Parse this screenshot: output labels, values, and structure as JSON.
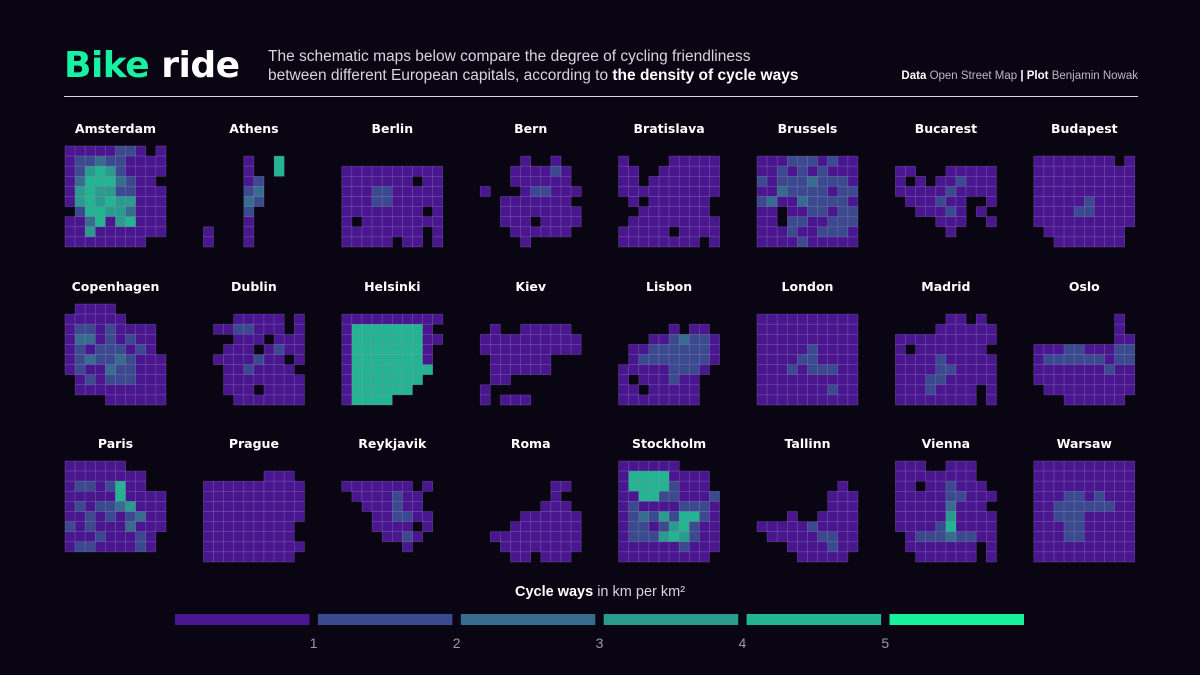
{
  "header": {
    "title_word1": "Bike",
    "title_word2": "ride",
    "subtitle_line1": "The schematic maps below compare the degree of cycling friendliness",
    "subtitle_line2_plain": "between different European capitals, according to ",
    "subtitle_line2_bold": "the density of cycle ways",
    "credit_data_label": "Data",
    "credit_data_value": "Open Street Map",
    "credit_sep": "|",
    "credit_plot_label": "Plot",
    "credit_plot_value": "Benjamin Nowak"
  },
  "legend": {
    "title_bold": "Cycle ways",
    "title_rest": "in km per km²"
  },
  "chart_data": {
    "type": "heatmap",
    "title": "Bike ride",
    "value_unit": "km per km²",
    "grid_size": [
      10,
      10
    ],
    "color_scale": {
      "breaks": [
        1,
        2,
        3,
        4,
        5
      ],
      "tick_labels": [
        "1",
        "2",
        "3",
        "4",
        "5"
      ],
      "colors": [
        "#4a1690",
        "#3b4a8e",
        "#366d8e",
        "#2a9c8e",
        "#23b492",
        "#16f29c"
      ]
    },
    "cell_border_color": "#a99bcc",
    "cities": [
      {
        "name": "Amsterdam",
        "rows": [
          "1111122101",
          "1223221111",
          "1245421111",
          "1355532110",
          "1454422111",
          "1454544111",
          "0255443111",
          "1135145111",
          "1141111111",
          "1111111100"
        ]
      },
      {
        "name": "Athens",
        "rows": [
          "0000000000",
          "0000100500",
          "0000100500",
          "0000120000",
          "0000230000",
          "0000320000",
          "0000200000",
          "0000100000",
          "1000100000",
          "1000100000"
        ]
      },
      {
        "name": "Berlin",
        "rows": [
          "0000000000",
          "0000000000",
          "1111111111",
          "1111111011",
          "1112211111",
          "1112211111",
          "1111111101",
          "1011111111",
          "1111111101",
          "1111101101"
        ]
      },
      {
        "name": "Bern",
        "rows": [
          "0000000000",
          "0000100100",
          "0001111210",
          "0001111110",
          "1000122111",
          "0011111110",
          "0011111111",
          "0011101111",
          "0001111110",
          "0000100000"
        ]
      },
      {
        "name": "Bratislava",
        "rows": [
          "0000000000",
          "1000011111",
          "1100111111",
          "1101111111",
          "1111111111",
          "0101111110",
          "0011111110",
          "0111111111",
          "1111101111",
          "1111111101"
        ]
      },
      {
        "name": "Brussels",
        "rows": [
          "0000000000",
          "1112221211",
          "1121212111",
          "2122232221",
          "1132222122",
          "2311322221",
          "1101122122",
          "1102211222",
          "1112112221",
          "1111211111"
        ]
      },
      {
        "name": "Bucarest",
        "rows": [
          "0000000000",
          "0000000000",
          "1100011111",
          "1010112111",
          "1111121111",
          "0111211001",
          "0011121010",
          "0000111001",
          "0000010000",
          "0000000000"
        ]
      },
      {
        "name": "Budapest",
        "rows": [
          "0000000000",
          "1111111101",
          "1111111111",
          "1111111111",
          "1111111111",
          "1111121111",
          "1111221111",
          "1111111111",
          "0111111110",
          "0011111110"
        ]
      },
      {
        "name": "Copenhagen",
        "rows": [
          "0111100000",
          "1111110000",
          "1221211110",
          "1331212110",
          "1212221210",
          "1232232111",
          "1211322111",
          "0121222111",
          "0111111111",
          "0000111111"
        ]
      },
      {
        "name": "Dublin",
        "rows": [
          "0000000000",
          "0001111101",
          "0112211101",
          "0001110111",
          "0011101211",
          "0111121101",
          "0011211110",
          "0011111111",
          "0011101111",
          "0001111111"
        ]
      },
      {
        "name": "Helsinki",
        "rows": [
          "0000000000",
          "1111111111",
          "1555555510",
          "1555555511",
          "1555555510",
          "1555555510",
          "1555555550",
          "1555555500",
          "1555555000",
          "1555500000"
        ]
      },
      {
        "name": "Kiev",
        "rows": [
          "0000000000",
          "0000000000",
          "0100111110",
          "1111111111",
          "1111111111",
          "0111111000",
          "0111111000",
          "0110000000",
          "1000000000",
          "1011100000"
        ]
      },
      {
        "name": "Lisbon",
        "rows": [
          "0000000000",
          "0000000000",
          "0000010110",
          "0001123221",
          "0112222221",
          "0122222221",
          "1111122210",
          "1011121100",
          "1101111100",
          "1111111100"
        ]
      },
      {
        "name": "London",
        "rows": [
          "0000000000",
          "1111111111",
          "1111111111",
          "1111111111",
          "1111121111",
          "1111221111",
          "1112122211",
          "1111111111",
          "1111111211",
          "1111111111"
        ]
      },
      {
        "name": "Madrid",
        "rows": [
          "0000000000",
          "0000011010",
          "0000111111",
          "1111111111",
          "1011111110",
          "1111211111",
          "1111221111",
          "1112211111",
          "1112111101",
          "1111111101"
        ]
      },
      {
        "name": "Oslo",
        "rows": [
          "0000000000",
          "0000000010",
          "0000000010",
          "0000000011",
          "1112211122",
          "1222222122",
          "1111111211",
          "1111111111",
          "0111111111",
          "0001111110"
        ]
      },
      {
        "name": "Paris",
        "rows": [
          "1111110000",
          "1111111100",
          "1221251100",
          "1111151111",
          "1212234111",
          "1121212311",
          "2121113111",
          "1112111210",
          "1221111210",
          "0000000000"
        ]
      },
      {
        "name": "Prague",
        "rows": [
          "0000000000",
          "0000001110",
          "1111111111",
          "1111111111",
          "1111111111",
          "1111111111",
          "1111111110",
          "1111111110",
          "1111111111",
          "1111111110"
        ]
      },
      {
        "name": "Reykjavik",
        "rows": [
          "0000000000",
          "0000000000",
          "1111111010",
          "0111121100",
          "0011121100",
          "0001122110",
          "0001111010",
          "0000112100",
          "0000001000",
          "0000000000"
        ]
      },
      {
        "name": "Roma",
        "rows": [
          "0000000000",
          "0000000000",
          "0000000110",
          "0000000100",
          "0000001110",
          "0000111111",
          "0001111111",
          "0111111111",
          "0011111111",
          "0001101110"
        ]
      },
      {
        "name": "Stockholm",
        "rows": [
          "1111110000",
          "1555511110",
          "1555521110",
          "1155221112",
          "1211112221",
          "1232425521",
          "1221245211",
          "1222454211",
          "1111112111",
          "1111111110"
        ]
      },
      {
        "name": "Tallinn",
        "rows": [
          "0000000000",
          "0000000000",
          "0000000010",
          "0000000111",
          "0000000111",
          "0001001111",
          "1111121111",
          "0111112211",
          "0001111211",
          "0000111110"
        ]
      },
      {
        "name": "Vienna",
        "rows": [
          "1110011100",
          "1111111100",
          "1101121110",
          "1111122111",
          "1111131110",
          "1111141111",
          "1111251111",
          "0122232211",
          "0111111101",
          "0011111101"
        ]
      },
      {
        "name": "Warsaw",
        "rows": [
          "1111111111",
          "1111111111",
          "1111111111",
          "1112212111",
          "1122222211",
          "1122211111",
          "1112211111",
          "1112211111",
          "1111111111",
          "1111111111"
        ]
      }
    ]
  }
}
